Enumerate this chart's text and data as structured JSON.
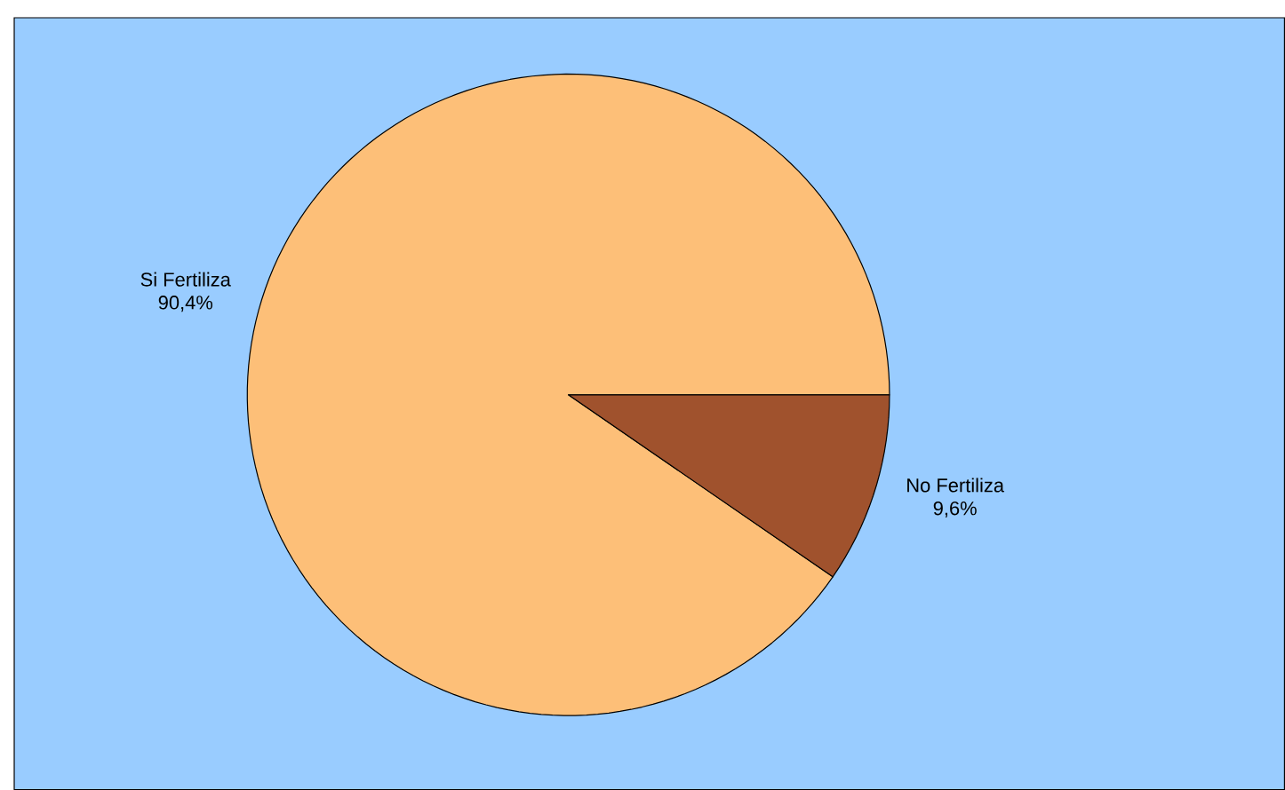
{
  "chart_data": {
    "type": "pie",
    "categories": [
      "Si Fertiliza",
      "No Fertiliza"
    ],
    "values": [
      90.4,
      9.6
    ],
    "colors": [
      "#fdbf78",
      "#a0522d"
    ],
    "value_labels": [
      "90,4%",
      "9,6%"
    ]
  }
}
